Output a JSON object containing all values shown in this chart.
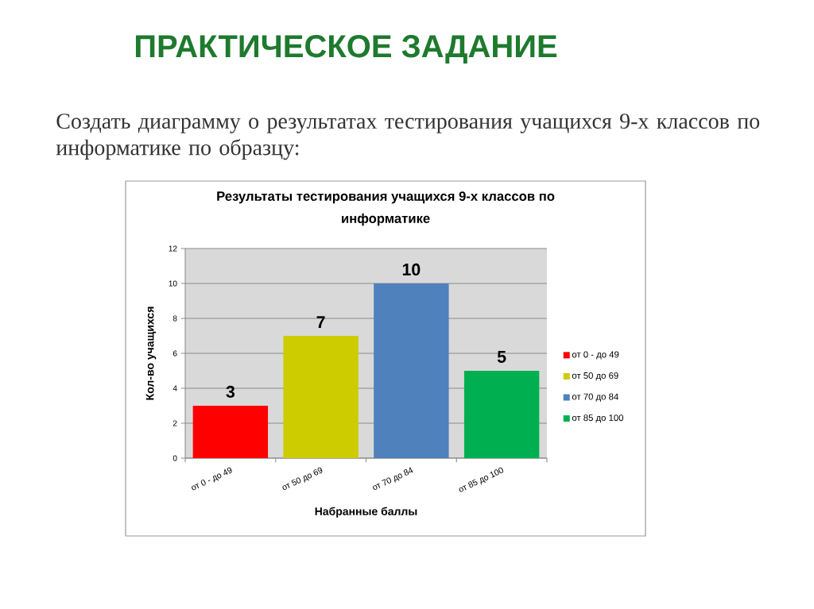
{
  "chart_data": {
    "type": "bar",
    "title": "Результаты тестирования учащихся 9-х классов по информатике",
    "xlabel": "Набранные баллы",
    "ylabel": "Кол-во учащихся",
    "categories": [
      "от 0 - до 49",
      "от 50 до 69",
      "от 70 до 84",
      "от 85 до 100"
    ],
    "series": [
      {
        "name": "от 0 - до 49",
        "color": "#ff0000",
        "values": [
          3,
          null,
          null,
          null
        ]
      },
      {
        "name": "от 50 до 69",
        "color": "#cccc00",
        "values": [
          null,
          7,
          null,
          null
        ]
      },
      {
        "name": "от 70 до 84",
        "color": "#4f81bd",
        "values": [
          null,
          null,
          10,
          null
        ]
      },
      {
        "name": "от 85 до 100",
        "color": "#00b050",
        "values": [
          null,
          null,
          null,
          5
        ]
      }
    ],
    "stacked": true,
    "ylim": [
      0,
      12
    ],
    "yticks": [
      0,
      2,
      4,
      6,
      8,
      10,
      12
    ],
    "grid": "y",
    "legend": "right",
    "data_labels": true,
    "annotations": [
      "ПРАКТИЧЕСКОЕ ЗАДАНИЕ",
      "Создать диаграмму о результатах тестирования учащихся 9-х классов по информатике по образцу:"
    ]
  }
}
